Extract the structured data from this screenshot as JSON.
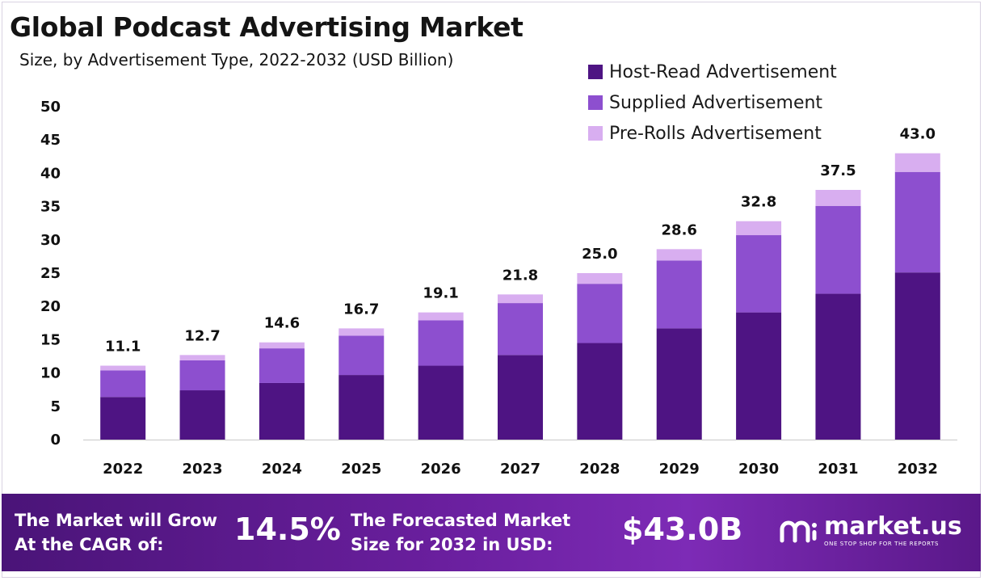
{
  "title": "Global Podcast Advertising Market",
  "subtitle": "Size, by Advertisement Type, 2022-2032 (USD Billion)",
  "colors": {
    "host_read": "#4e1483",
    "supplied": "#8d4fcf",
    "pre_rolls": "#d8aef0",
    "axis": "#c9c9c9"
  },
  "chart_data": {
    "type": "bar",
    "stacked": true,
    "title": "Global Podcast Advertising Market",
    "subtitle": "Size, by Advertisement Type, 2022-2032 (USD Billion)",
    "xlabel": "",
    "ylabel": "",
    "ylim": [
      0,
      50
    ],
    "yticks": [
      0,
      5,
      10,
      15,
      20,
      25,
      30,
      35,
      40,
      45,
      50
    ],
    "grid": false,
    "legend_position": "top-right",
    "categories": [
      "2022",
      "2023",
      "2024",
      "2025",
      "2026",
      "2027",
      "2028",
      "2029",
      "2030",
      "2031",
      "2032"
    ],
    "series": [
      {
        "name": "Host-Read Advertisement",
        "color": "#4e1483",
        "values": [
          6.4,
          7.4,
          8.5,
          9.7,
          11.1,
          12.7,
          14.5,
          16.7,
          19.1,
          21.9,
          25.1
        ]
      },
      {
        "name": "Supplied Advertisement",
        "color": "#8d4fcf",
        "values": [
          4.0,
          4.5,
          5.2,
          5.9,
          6.8,
          7.8,
          8.9,
          10.2,
          11.6,
          13.2,
          15.1
        ]
      },
      {
        "name": "Pre-Rolls Advertisement",
        "color": "#d8aef0",
        "values": [
          0.7,
          0.8,
          0.9,
          1.1,
          1.2,
          1.3,
          1.6,
          1.7,
          2.1,
          2.4,
          2.8
        ]
      }
    ],
    "totals": [
      11.1,
      12.7,
      14.6,
      16.7,
      19.1,
      21.8,
      25.0,
      28.6,
      32.8,
      37.5,
      43.0
    ],
    "total_labels": [
      "11.1",
      "12.7",
      "14.6",
      "16.7",
      "19.1",
      "21.8",
      "25.0",
      "28.6",
      "32.8",
      "37.5",
      "43.0"
    ]
  },
  "footer": {
    "cagr_line1": "The Market will Grow",
    "cagr_line2": "At the CAGR of:",
    "cagr_value": "14.5%",
    "forecast_line1": "The Forecasted Market",
    "forecast_line2": "Size for 2032 in USD:",
    "forecast_value": "$43.0B",
    "brand_name": "market.us",
    "brand_tagline": "ONE STOP SHOP FOR THE REPORTS"
  }
}
